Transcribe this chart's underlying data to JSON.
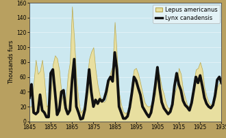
{
  "years": [
    1845,
    1846,
    1847,
    1848,
    1849,
    1850,
    1851,
    1852,
    1853,
    1854,
    1855,
    1856,
    1857,
    1858,
    1859,
    1860,
    1861,
    1862,
    1863,
    1864,
    1865,
    1866,
    1867,
    1868,
    1869,
    1870,
    1871,
    1872,
    1873,
    1874,
    1875,
    1876,
    1877,
    1878,
    1879,
    1880,
    1881,
    1882,
    1883,
    1884,
    1885,
    1886,
    1887,
    1888,
    1889,
    1890,
    1891,
    1892,
    1893,
    1894,
    1895,
    1896,
    1897,
    1898,
    1899,
    1900,
    1901,
    1902,
    1903,
    1904,
    1905,
    1906,
    1907,
    1908,
    1909,
    1910,
    1911,
    1912,
    1913,
    1914,
    1915,
    1916,
    1917,
    1918,
    1919,
    1920,
    1921,
    1922,
    1923,
    1924,
    1925,
    1926,
    1927,
    1928,
    1929,
    1930,
    1931,
    1932,
    1933,
    1934,
    1935
  ],
  "hare": [
    20,
    20,
    52,
    83,
    64,
    68,
    83,
    57,
    20,
    23,
    31,
    77,
    89,
    85,
    69,
    39,
    22,
    26,
    62,
    80,
    155,
    111,
    60,
    29,
    12,
    16,
    24,
    55,
    84,
    94,
    100,
    70,
    49,
    35,
    28,
    26,
    30,
    54,
    66,
    75,
    134,
    90,
    39,
    23,
    13,
    11,
    13,
    26,
    52,
    70,
    72,
    64,
    52,
    38,
    26,
    21,
    20,
    22,
    30,
    36,
    70,
    62,
    46,
    37,
    24,
    18,
    18,
    23,
    38,
    46,
    72,
    64,
    42,
    32,
    22,
    20,
    29,
    52,
    70,
    72,
    80,
    70,
    46,
    34,
    26,
    22,
    24,
    30,
    46,
    52,
    52
  ],
  "lynx": [
    32,
    50,
    12,
    10,
    13,
    36,
    15,
    12,
    6,
    6,
    65,
    70,
    40,
    9,
    15,
    40,
    42,
    18,
    10,
    15,
    55,
    84,
    20,
    12,
    3,
    4,
    16,
    40,
    70,
    40,
    20,
    29,
    24,
    30,
    27,
    30,
    40,
    55,
    60,
    54,
    93,
    70,
    20,
    12,
    4,
    4,
    7,
    19,
    38,
    60,
    55,
    45,
    36,
    20,
    15,
    10,
    6,
    12,
    28,
    49,
    73,
    45,
    26,
    18,
    14,
    10,
    13,
    23,
    48,
    65,
    50,
    42,
    28,
    22,
    19,
    15,
    25,
    42,
    60,
    52,
    62,
    48,
    32,
    24,
    20,
    18,
    22,
    35,
    56,
    60,
    52
  ],
  "hare_color": "#e8dfa0",
  "hare_edge_color": "#b8a850",
  "lynx_color": "#111111",
  "bg_color": "#cce8f0",
  "outer_bg": "#b8a060",
  "ylim": [
    0,
    160
  ],
  "yticks": [
    0,
    20,
    40,
    60,
    80,
    100,
    120,
    140,
    160
  ],
  "xticks": [
    1845,
    1855,
    1865,
    1875,
    1885,
    1895,
    1905,
    1915,
    1925,
    1935
  ],
  "ylabel": "Thousands furs",
  "legend_hare": "Lepus americanus",
  "legend_lynx": "Lynx canadensis",
  "axis_fontsize": 6.0,
  "tick_fontsize": 5.5,
  "ylabel_fontsize": 6.0
}
